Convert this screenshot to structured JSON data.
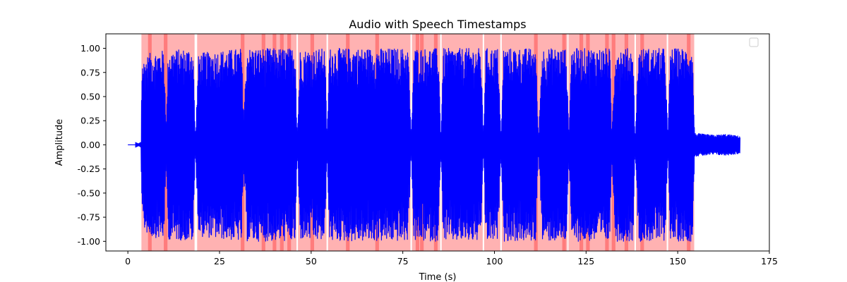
{
  "chart_data": {
    "type": "line",
    "title": "Audio with Speech Timestamps",
    "xlabel": "Time (s)",
    "ylabel": "Amplitude",
    "xlim": [
      -6,
      175
    ],
    "ylim": [
      -1.1,
      1.15
    ],
    "xticks": [
      0,
      25,
      50,
      75,
      100,
      125,
      150,
      175
    ],
    "yticks": [
      -1.0,
      -0.75,
      -0.5,
      -0.25,
      0.0,
      0.25,
      0.5,
      0.75,
      1.0
    ],
    "grid": false,
    "legend": {
      "placement": "top-right",
      "entries": []
    },
    "series": [
      {
        "kind": "waveform",
        "color": "#0000ff",
        "duration_end": 167,
        "envelope": [
          [
            0,
            0.0
          ],
          [
            2.5,
            0.0
          ],
          [
            3.6,
            0.03
          ],
          [
            3.8,
            0.85
          ],
          [
            6,
            0.95
          ],
          [
            9.8,
            0.98
          ],
          [
            10.5,
            0.2
          ],
          [
            11,
            0.98
          ],
          [
            17.8,
            1.0
          ],
          [
            18.4,
            0.05
          ],
          [
            19.3,
            0.95
          ],
          [
            31,
            1.0
          ],
          [
            31.6,
            0.3
          ],
          [
            32.5,
            1.0
          ],
          [
            45.7,
            1.0
          ],
          [
            46.2,
            0.05
          ],
          [
            47,
            0.98
          ],
          [
            53.8,
            1.0
          ],
          [
            54.3,
            0.05
          ],
          [
            55,
            1.0
          ],
          [
            76.5,
            1.0
          ],
          [
            77.3,
            0.05
          ],
          [
            78,
            1.0
          ],
          [
            84.7,
            1.0
          ],
          [
            85.4,
            0.05
          ],
          [
            86,
            1.0
          ],
          [
            96.3,
            1.0
          ],
          [
            97,
            0.05
          ],
          [
            97.6,
            1.0
          ],
          [
            101,
            1.0
          ],
          [
            101.8,
            0.05
          ],
          [
            102.5,
            1.0
          ],
          [
            111.3,
            1.0
          ],
          [
            112,
            0.05
          ],
          [
            113,
            1.0
          ],
          [
            119.6,
            1.0
          ],
          [
            120.3,
            0.1
          ],
          [
            121,
            1.0
          ],
          [
            131.5,
            1.0
          ],
          [
            132,
            0.1
          ],
          [
            133,
            1.0
          ],
          [
            137.8,
            1.0
          ],
          [
            138.4,
            0.05
          ],
          [
            139.3,
            1.0
          ],
          [
            146.6,
            1.0
          ],
          [
            147.3,
            0.05
          ],
          [
            148,
            1.0
          ],
          [
            154,
            1.0
          ],
          [
            154.6,
            0.12
          ],
          [
            160,
            0.1
          ],
          [
            163,
            0.11
          ],
          [
            167,
            0.09
          ]
        ]
      }
    ],
    "shaded_regions": {
      "color": "#ff0000",
      "opacity": 0.3,
      "spans": [
        [
          3.7,
          18.2
        ],
        [
          18.9,
          46.0
        ],
        [
          46.4,
          54.2
        ],
        [
          54.6,
          77.1
        ],
        [
          77.5,
          85.2
        ],
        [
          85.6,
          96.8
        ],
        [
          97.2,
          101.6
        ],
        [
          102.0,
          119.9
        ],
        [
          120.2,
          138.2
        ],
        [
          138.6,
          147.0
        ],
        [
          147.4,
          154.5
        ],
        [
          5.5,
          6.5
        ],
        [
          9.8,
          10.8
        ],
        [
          30.8,
          31.8
        ],
        [
          36.5,
          37.5
        ],
        [
          39.5,
          40.5
        ],
        [
          41.5,
          42.5
        ],
        [
          43.5,
          44.5
        ],
        [
          49.8,
          50.8
        ],
        [
          59.5,
          60.5
        ],
        [
          67.5,
          68.5
        ],
        [
          78.5,
          79.5
        ],
        [
          79.7,
          80.7
        ],
        [
          83.5,
          84.5
        ],
        [
          110.8,
          111.8
        ],
        [
          118.5,
          119.5
        ],
        [
          123.2,
          124.2
        ],
        [
          125.0,
          126.0
        ],
        [
          130.2,
          131.2
        ],
        [
          132.0,
          133.0
        ],
        [
          135.5,
          136.5
        ],
        [
          139.8,
          140.8
        ],
        [
          152.5,
          153.5
        ]
      ]
    }
  }
}
